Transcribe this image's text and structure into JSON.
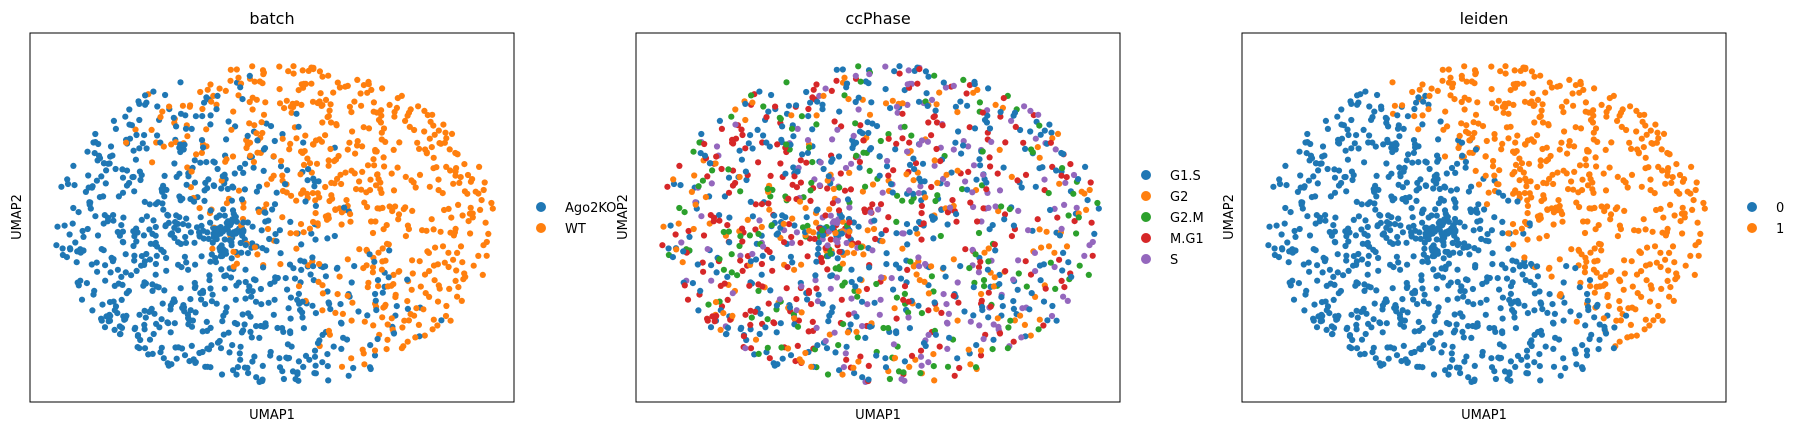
{
  "chart_data": [
    {
      "type": "scatter",
      "title": "batch",
      "xlabel": "UMAP1",
      "ylabel": "UMAP2",
      "grid": false,
      "legend_position": "right",
      "point_count": 1300,
      "series": [
        {
          "name": "Ago2KO",
          "color": "#1f77b4"
        },
        {
          "name": "WT",
          "color": "#ff7f0e"
        }
      ]
    },
    {
      "type": "scatter",
      "title": "ccPhase",
      "xlabel": "UMAP1",
      "ylabel": "UMAP2",
      "grid": false,
      "legend_position": "right",
      "point_count": 1300,
      "series": [
        {
          "name": "G1.S",
          "color": "#1f77b4"
        },
        {
          "name": "G2",
          "color": "#ff7f0e"
        },
        {
          "name": "G2.M",
          "color": "#2ca02c"
        },
        {
          "name": "M.G1",
          "color": "#d62728"
        },
        {
          "name": "S",
          "color": "#9467bd"
        }
      ]
    },
    {
      "type": "scatter",
      "title": "leiden",
      "xlabel": "UMAP1",
      "ylabel": "UMAP2",
      "grid": false,
      "legend_position": "right",
      "point_count": 1300,
      "series": [
        {
          "name": "0",
          "color": "#1f77b4"
        },
        {
          "name": "1",
          "color": "#ff7f0e"
        }
      ]
    }
  ]
}
